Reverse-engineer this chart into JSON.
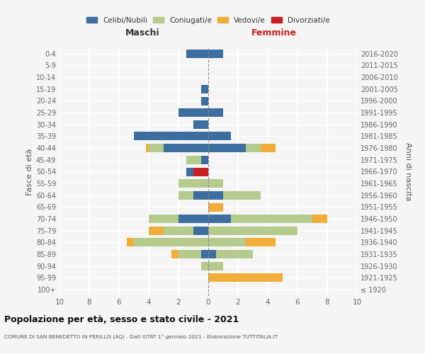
{
  "age_groups": [
    "0-4",
    "5-9",
    "10-14",
    "15-19",
    "20-24",
    "25-29",
    "30-34",
    "35-39",
    "40-44",
    "45-49",
    "50-54",
    "55-59",
    "60-64",
    "65-69",
    "70-74",
    "75-79",
    "80-84",
    "85-89",
    "90-94",
    "95-99",
    "100+"
  ],
  "birth_years": [
    "2016-2020",
    "2011-2015",
    "2006-2010",
    "2001-2005",
    "1996-2000",
    "1991-1995",
    "1986-1990",
    "1981-1985",
    "1976-1980",
    "1971-1975",
    "1966-1970",
    "1961-1965",
    "1956-1960",
    "1951-1955",
    "1946-1950",
    "1941-1945",
    "1936-1940",
    "1931-1935",
    "1926-1930",
    "1921-1925",
    "≤ 1920"
  ],
  "colors": {
    "celibi": "#3c6e9f",
    "coniugati": "#b5ca8d",
    "vedovi": "#f0ad3a",
    "divorziati": "#c82020"
  },
  "males": {
    "celibi": [
      1.5,
      0,
      0,
      0.5,
      0.5,
      2.0,
      1.0,
      5.0,
      3.0,
      0.5,
      0.5,
      0,
      1.0,
      0,
      2.0,
      1.0,
      0,
      0.5,
      0,
      0,
      0
    ],
    "coniugati": [
      0,
      0,
      0,
      0,
      0,
      0,
      0,
      0,
      1.0,
      1.0,
      0,
      2.0,
      1.0,
      0,
      2.0,
      2.0,
      5.0,
      1.5,
      0.5,
      0,
      0
    ],
    "vedovi": [
      0,
      0,
      0,
      0,
      0,
      0,
      0,
      0,
      0.2,
      0,
      0,
      0,
      0,
      0,
      0,
      1.0,
      0.5,
      0.5,
      0,
      0,
      0
    ],
    "divorziati": [
      0,
      0,
      0,
      0,
      0,
      0,
      0,
      0,
      0,
      0,
      1.0,
      0,
      0,
      0,
      0,
      0,
      0,
      0,
      0,
      0,
      0
    ]
  },
  "females": {
    "celibi": [
      1.0,
      0,
      0,
      0,
      0,
      1.0,
      0,
      1.5,
      2.5,
      0,
      0,
      0,
      1.0,
      0,
      1.5,
      0,
      0,
      0.5,
      0,
      0,
      0
    ],
    "coniugati": [
      0,
      0,
      0,
      0,
      0,
      0,
      0,
      0,
      1.0,
      0,
      0,
      1.0,
      2.5,
      0,
      5.5,
      6.0,
      2.5,
      2.5,
      1.0,
      0,
      0
    ],
    "vedovi": [
      0,
      0,
      0,
      0,
      0,
      0,
      0,
      0,
      1.0,
      0,
      0,
      0,
      0,
      1.0,
      1.0,
      0,
      2.0,
      0,
      0,
      5.0,
      0
    ],
    "divorziati": [
      0,
      0,
      0,
      0,
      0,
      0,
      0,
      0,
      0,
      0,
      0,
      0,
      0,
      0,
      0,
      0,
      0,
      0,
      0,
      0,
      0
    ]
  },
  "xlim": 10,
  "title": "Popolazione per età, sesso e stato civile - 2021",
  "subtitle": "COMUNE DI SAN BENEDETTO IN PERILLIS (AQ) - Dati ISTAT 1° gennaio 2021 - Elaborazione TUTTITALIA.IT",
  "xlabel_left": "Maschi",
  "xlabel_right": "Femmine",
  "ylabel_left": "Fasce di età",
  "ylabel_right": "Anni di nascita",
  "bg_color": "#f5f5f5",
  "grid_color": "#ffffff",
  "legend_labels": [
    "Celibi/Nubili",
    "Coniugati/e",
    "Vedovi/e",
    "Divorziati/e"
  ]
}
